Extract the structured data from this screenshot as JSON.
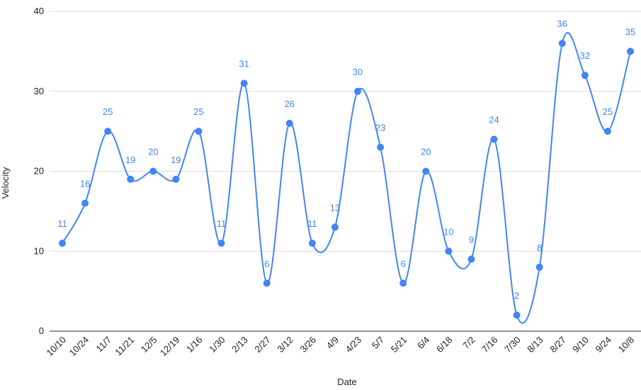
{
  "chart_data": {
    "type": "line",
    "x_label": "Date",
    "y_label": "Velocity",
    "categories": [
      "10/10",
      "10/24",
      "11/7",
      "11/21",
      "12/5",
      "12/19",
      "1/16",
      "1/30",
      "2/13",
      "2/27",
      "3/12",
      "3/26",
      "4/9",
      "4/23",
      "5/7",
      "5/21",
      "6/4",
      "6/18",
      "7/2",
      "7/16",
      "7/30",
      "8/13",
      "8/27",
      "9/10",
      "9/24",
      "10/8"
    ],
    "series": [
      {
        "name": "Velocity",
        "color": "#4285f4",
        "values": [
          11,
          16,
          25,
          19,
          20,
          19,
          25,
          11,
          31,
          6,
          26,
          11,
          13,
          30,
          23,
          6,
          20,
          10,
          9,
          24,
          2,
          8,
          36,
          32,
          25,
          35
        ]
      }
    ],
    "ylim": [
      0,
      40
    ],
    "yticks": [
      0,
      10,
      20,
      30,
      40
    ],
    "grid": true,
    "smooth": true,
    "data_labels": true
  }
}
